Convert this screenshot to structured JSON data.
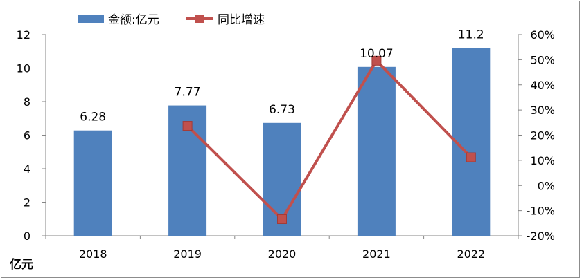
{
  "chart_data": {
    "type": "bar",
    "categories": [
      "2018",
      "2019",
      "2020",
      "2021",
      "2022"
    ],
    "series": [
      {
        "name": "金额:亿元",
        "type": "bar",
        "axis": "left",
        "values": [
          6.28,
          7.77,
          6.73,
          10.07,
          11.2
        ],
        "data_labels": [
          "6.28",
          "7.77",
          "6.73",
          "10.07",
          "11.2"
        ],
        "color": "#4f81bd"
      },
      {
        "name": "同比增速",
        "type": "line",
        "axis": "right",
        "values": [
          null,
          23.7,
          -13.4,
          49.6,
          11.2
        ],
        "color": "#c0504d"
      }
    ],
    "y_left": {
      "ylim": [
        0,
        12
      ],
      "ticks": [
        "0",
        "2",
        "4",
        "6",
        "8",
        "10",
        "12"
      ],
      "unit_label": "亿元"
    },
    "y_right": {
      "ylim": [
        -20,
        60
      ],
      "ticks": [
        "-20%",
        "-10%",
        "0%",
        "10%",
        "20%",
        "30%",
        "40%",
        "50%",
        "60%"
      ]
    },
    "legend": {
      "position": "top-left"
    },
    "grid": false
  }
}
